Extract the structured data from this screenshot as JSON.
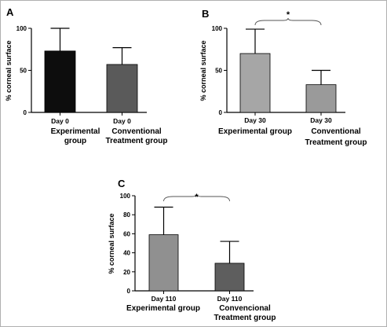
{
  "chart_data": [
    {
      "type": "bar",
      "panel": "A",
      "ylabel": "% corneal surface",
      "ylim": [
        0,
        100
      ],
      "yticks": [
        0,
        50,
        100
      ],
      "categories": [
        "Day 0",
        "Day 0"
      ],
      "groups": [
        [
          "Experimental",
          "group"
        ],
        [
          "Conventional",
          "Treatment group"
        ]
      ],
      "values": [
        73,
        57
      ],
      "errors": [
        27,
        20
      ],
      "colors": [
        "#0d0d0d",
        "#5a5a5a"
      ],
      "significance": ""
    },
    {
      "type": "bar",
      "panel": "B",
      "ylabel": "% corneal surface",
      "ylim": [
        0,
        100
      ],
      "yticks": [
        0,
        50,
        100
      ],
      "categories": [
        "Day 30",
        "Day 30"
      ],
      "groups": [
        [
          "Experimental group"
        ],
        [
          "Conventional",
          "Treatment group"
        ]
      ],
      "values": [
        70,
        33
      ],
      "errors": [
        29,
        17
      ],
      "colors": [
        "#a6a6a6",
        "#9a9a9a"
      ],
      "significance": "*"
    },
    {
      "type": "bar",
      "panel": "C",
      "ylabel": "% corneal surface",
      "ylim": [
        0,
        100
      ],
      "yticks": [
        0,
        20,
        40,
        60,
        80,
        100
      ],
      "categories": [
        "Day 110",
        "Day 110"
      ],
      "groups": [
        [
          "Experimental group"
        ],
        [
          "Convencional",
          "Treatment group"
        ]
      ],
      "values": [
        59,
        29
      ],
      "errors": [
        29,
        23
      ],
      "colors": [
        "#909090",
        "#5e5e5e"
      ],
      "significance": "*"
    }
  ]
}
